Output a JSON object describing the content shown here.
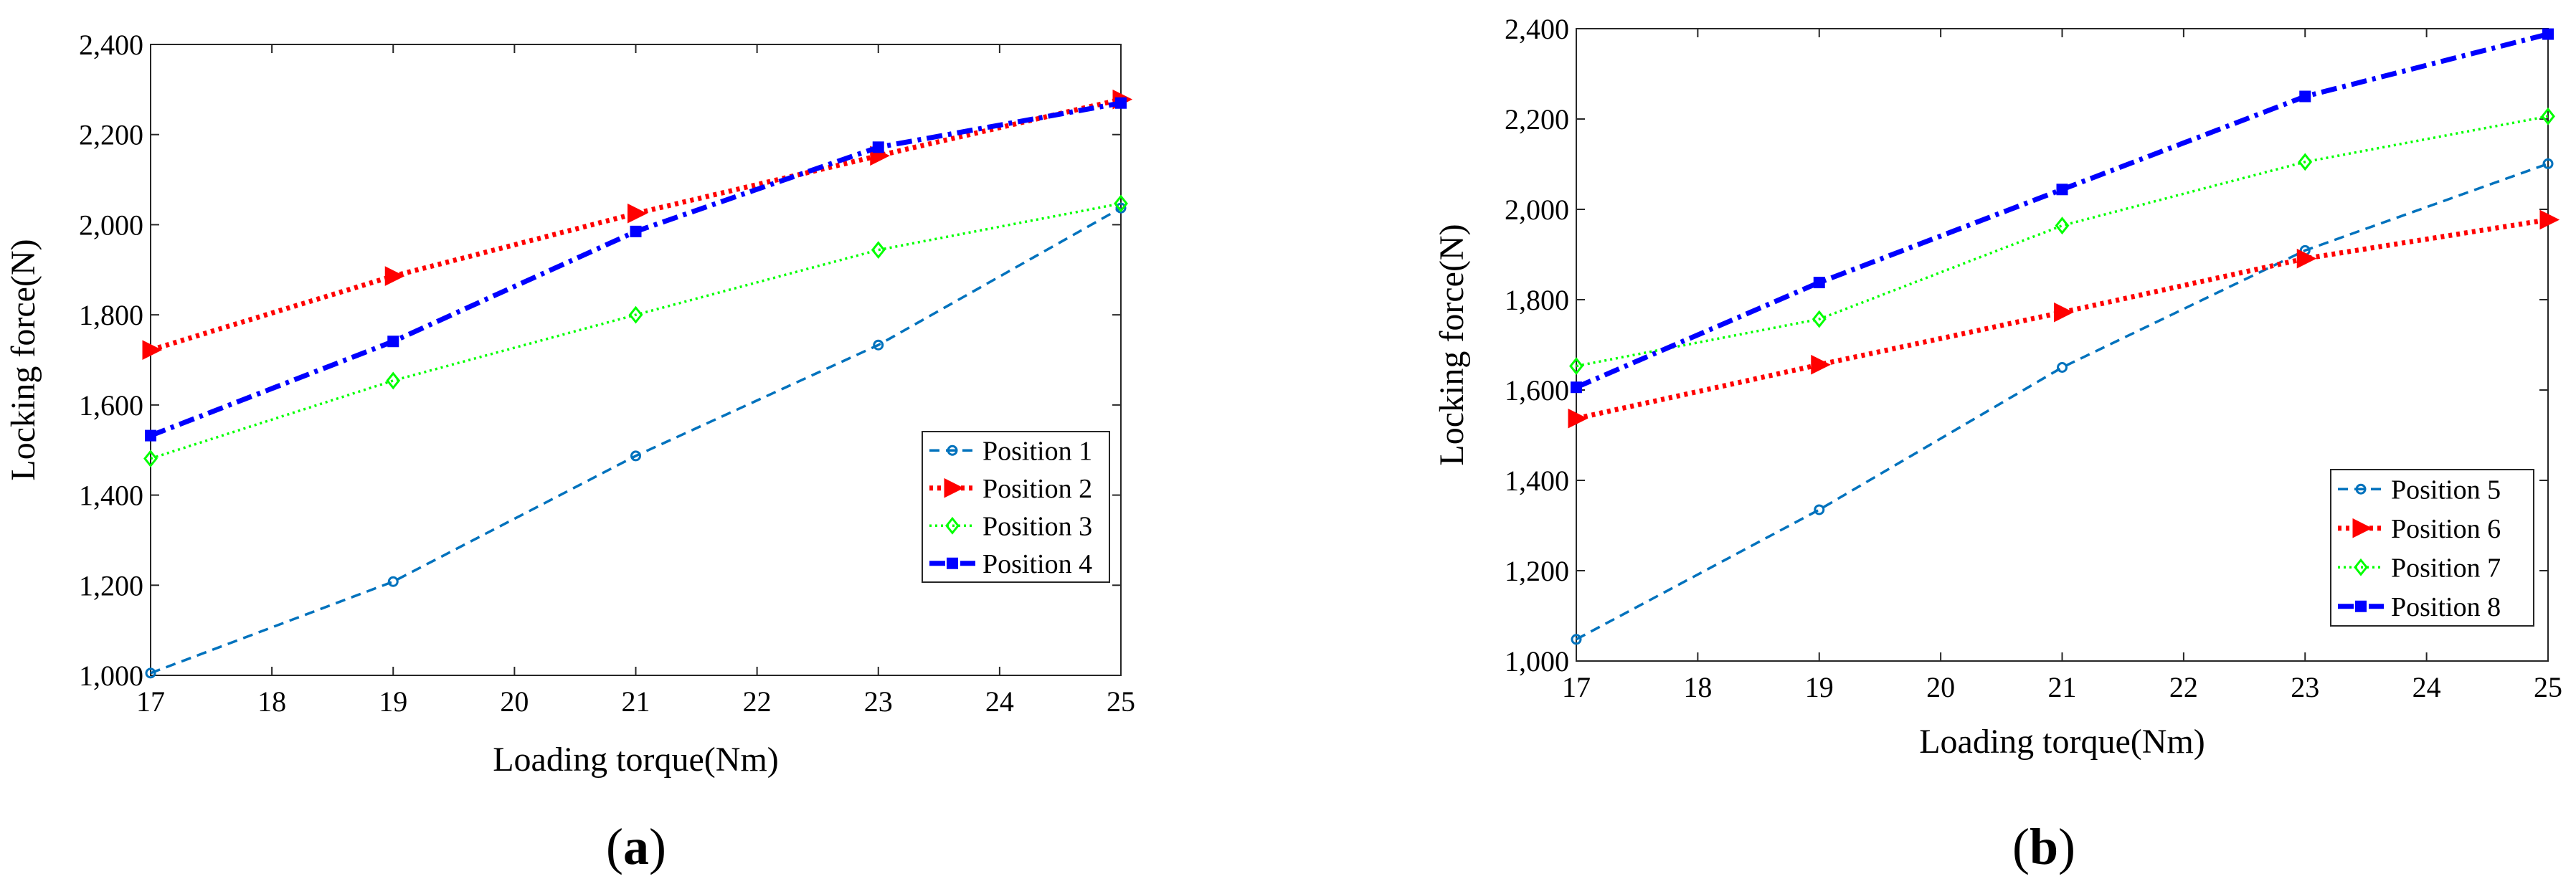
{
  "chart_data": [
    {
      "type": "line",
      "panel_label": "a",
      "xlabel": "Loading torque(Nm)",
      "ylabel": "Locking force(N)",
      "xlim": [
        17,
        25
      ],
      "ylim": [
        1000,
        2400
      ],
      "xticks": [
        "17",
        "18",
        "19",
        "20",
        "21",
        "22",
        "23",
        "24",
        "25"
      ],
      "yticks": [
        "1,000",
        "1,200",
        "1,400",
        "1,600",
        "1,800",
        "2,000",
        "2,200",
        "2,400"
      ],
      "legend_position": "center-right",
      "x": [
        17,
        19,
        21,
        23,
        25
      ],
      "series": [
        {
          "name": "Position 1",
          "color": "#0072BD",
          "dash": "dashed",
          "marker": "circle",
          "values": [
            1005,
            1208,
            1487,
            1733,
            2037
          ]
        },
        {
          "name": "Position 2",
          "color": "#FF0000",
          "dash": "dotted",
          "marker": "triangle-right",
          "values": [
            1722,
            1886,
            2025,
            2153,
            2278
          ]
        },
        {
          "name": "Position 3",
          "color": "#00FF00",
          "dash": "dotted-thin",
          "marker": "diamond",
          "values": [
            1481,
            1654,
            1800,
            1944,
            2047
          ]
        },
        {
          "name": "Position 4",
          "color": "#0000FF",
          "dash": "dash-dot",
          "marker": "square",
          "values": [
            1532,
            1741,
            1985,
            2172,
            2270
          ]
        }
      ]
    },
    {
      "type": "line",
      "panel_label": "b",
      "xlabel": "Loading torque(Nm)",
      "ylabel": "Locking force(N)",
      "xlim": [
        17,
        25
      ],
      "ylim": [
        1000,
        2400
      ],
      "xticks": [
        "17",
        "18",
        "19",
        "20",
        "21",
        "22",
        "23",
        "24",
        "25"
      ],
      "yticks": [
        "1,000",
        "1,200",
        "1,400",
        "1,600",
        "1,800",
        "2,000",
        "2,200",
        "2,400"
      ],
      "legend_position": "bottom-right",
      "x": [
        17,
        19,
        21,
        23,
        25
      ],
      "series": [
        {
          "name": "Position 5",
          "color": "#0072BD",
          "dash": "dashed",
          "marker": "circle",
          "values": [
            1048,
            1335,
            1650,
            1909,
            2101
          ]
        },
        {
          "name": "Position 6",
          "color": "#FF0000",
          "dash": "dotted",
          "marker": "triangle-right",
          "values": [
            1537,
            1656,
            1772,
            1891,
            1977
          ]
        },
        {
          "name": "Position 7",
          "color": "#00FF00",
          "dash": "dotted-thin",
          "marker": "diamond",
          "values": [
            1653,
            1757,
            1964,
            2105,
            2206
          ]
        },
        {
          "name": "Position 8",
          "color": "#0000FF",
          "dash": "dash-dot",
          "marker": "square",
          "values": [
            1606,
            1838,
            2044,
            2250,
            2388
          ]
        }
      ]
    }
  ]
}
